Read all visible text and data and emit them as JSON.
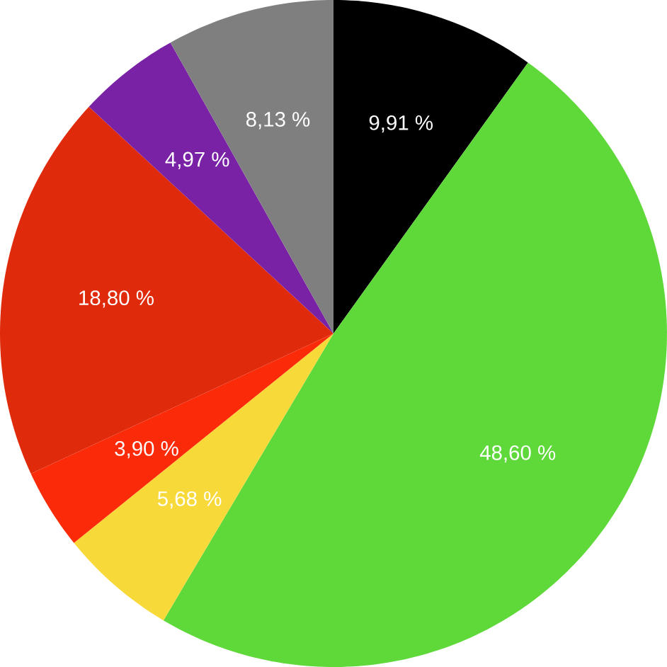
{
  "chart_data": {
    "type": "pie",
    "categories": [
      null,
      null,
      null,
      null,
      null,
      null,
      null
    ],
    "values": [
      9.91,
      48.6,
      5.68,
      3.9,
      18.8,
      4.97,
      8.13
    ],
    "colors": [
      "#000000",
      "#5fd83a",
      "#f8d93a",
      "#fb2a08",
      "#e02a0c",
      "#7a22a6",
      "#7f7f7f"
    ],
    "value_labels": [
      "9,91 %",
      "48,60 %",
      "5,68 %",
      "3,90 %",
      "18,80 %",
      "4,97 %",
      "8,13 %"
    ]
  }
}
